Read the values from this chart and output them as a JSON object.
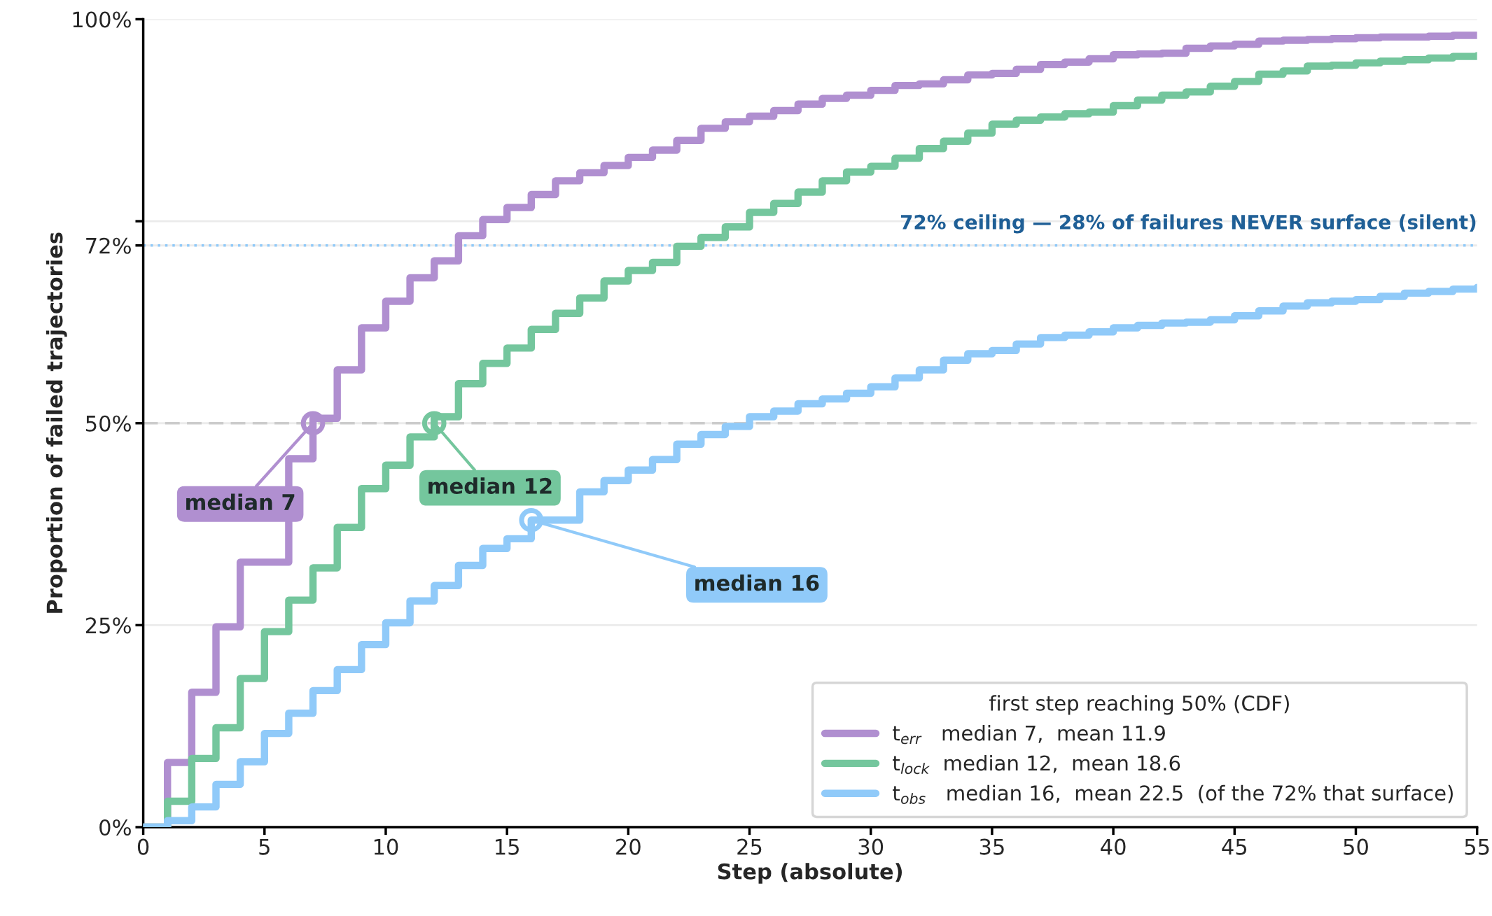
{
  "chart_data": {
    "type": "step",
    "xlabel": "Step (absolute)",
    "ylabel": "Proportion of failed trajectories",
    "legend_title": "first step reaching 50% (CDF)",
    "x": [
      0,
      1,
      2,
      3,
      4,
      5,
      6,
      7,
      8,
      9,
      10,
      11,
      12,
      13,
      14,
      15,
      16,
      17,
      18,
      19,
      20,
      21,
      22,
      23,
      24,
      25,
      26,
      27,
      28,
      29,
      30,
      31,
      32,
      33,
      34,
      35,
      36,
      37,
      38,
      39,
      40,
      41,
      42,
      43,
      44,
      45,
      46,
      47,
      48,
      49,
      50,
      51,
      52,
      53,
      54,
      55
    ],
    "series": [
      {
        "name": "t$_{err}$   median 7,  mean 11.9",
        "color": "#b08fd0",
        "values": [
          0,
          8.0,
          16.7,
          24.8,
          32.8,
          null,
          45.6,
          50.6,
          56.6,
          61.8,
          65.1,
          68.0,
          70.1,
          73.2,
          75.2,
          76.7,
          78.3,
          80.0,
          81.0,
          81.9,
          82.9,
          83.8,
          85.0,
          86.5,
          87.3,
          88.0,
          88.7,
          89.5,
          90.2,
          90.6,
          91.2,
          91.8,
          92.0,
          92.5,
          93.1,
          93.3,
          93.8,
          94.4,
          94.7,
          95.1,
          95.6,
          95.7,
          95.8,
          96.4,
          96.7,
          96.9,
          97.3,
          97.4,
          97.5,
          97.6,
          97.7,
          97.8,
          97.8,
          97.9,
          98.0,
          98.0
        ]
      },
      {
        "name": "t$_{lock}$  median 12,  mean 18.6",
        "color": "#74c69d",
        "values": [
          0,
          3.2,
          8.5,
          12.3,
          18.4,
          24.2,
          28.1,
          32.1,
          37.1,
          41.9,
          44.8,
          48.3,
          50.8,
          54.9,
          57.4,
          59.3,
          61.6,
          63.6,
          65.5,
          67.6,
          68.9,
          69.9,
          71.9,
          73.0,
          74.3,
          76.1,
          77.2,
          78.6,
          80.0,
          81.1,
          81.8,
          82.8,
          84.0,
          84.9,
          85.9,
          87.0,
          87.5,
          87.9,
          88.3,
          88.5,
          89.3,
          90.0,
          90.6,
          91.0,
          91.7,
          92.3,
          93.2,
          93.6,
          94.2,
          94.3,
          94.6,
          94.8,
          95.0,
          95.2,
          95.4,
          95.5
        ]
      },
      {
        "name": "t$_{obs}$   median 16,  mean 22.5  (of the 72% that surface)",
        "color": "#90caf9",
        "values": [
          0,
          0.8,
          2.5,
          5.3,
          8.1,
          11.6,
          14.1,
          16.9,
          19.5,
          22.6,
          25.3,
          28.0,
          29.9,
          32.4,
          34.5,
          35.7,
          38.0,
          null,
          41.5,
          42.9,
          44.2,
          45.5,
          47.4,
          48.6,
          49.6,
          50.8,
          51.5,
          52.4,
          53.0,
          53.7,
          54.5,
          55.6,
          56.6,
          57.8,
          58.6,
          59.0,
          59.8,
          60.6,
          60.9,
          61.3,
          61.8,
          62.1,
          62.4,
          62.5,
          62.8,
          63.3,
          63.9,
          64.5,
          64.9,
          65.1,
          65.3,
          65.7,
          66.1,
          66.3,
          66.6,
          66.8
        ]
      }
    ],
    "annotations": [
      {
        "text": "median 7",
        "x": 7,
        "y": 50
      },
      {
        "text": "median 12",
        "x": 12,
        "y": 50
      },
      {
        "text": "median 16",
        "x": 16,
        "y": 38
      }
    ],
    "ref_lines": [
      {
        "axis": "y",
        "value": 72,
        "label": "72% ceiling — 28% of failures NEVER surface (silent)",
        "color": "#90caf9",
        "line_style": "dotted"
      },
      {
        "axis": "y",
        "value": 50,
        "color": "#cccccc",
        "line_style": "dashed"
      }
    ],
    "xlim": [
      0,
      55
    ],
    "xticks": [
      0,
      5,
      10,
      15,
      20,
      25,
      30,
      35,
      40,
      45,
      50,
      55
    ],
    "ylim": [
      0,
      100
    ],
    "yticks": [
      {
        "value": 0,
        "label": "0%"
      },
      {
        "value": 25,
        "label": "25%"
      },
      {
        "value": 50,
        "label": "50%"
      },
      {
        "value": 72,
        "label": "72%"
      },
      {
        "value": 75,
        "label": null
      },
      {
        "value": 100,
        "label": "100%"
      }
    ],
    "grid": "y",
    "legend": "bottom right",
    "marker": "none",
    "line_style": "solid"
  }
}
